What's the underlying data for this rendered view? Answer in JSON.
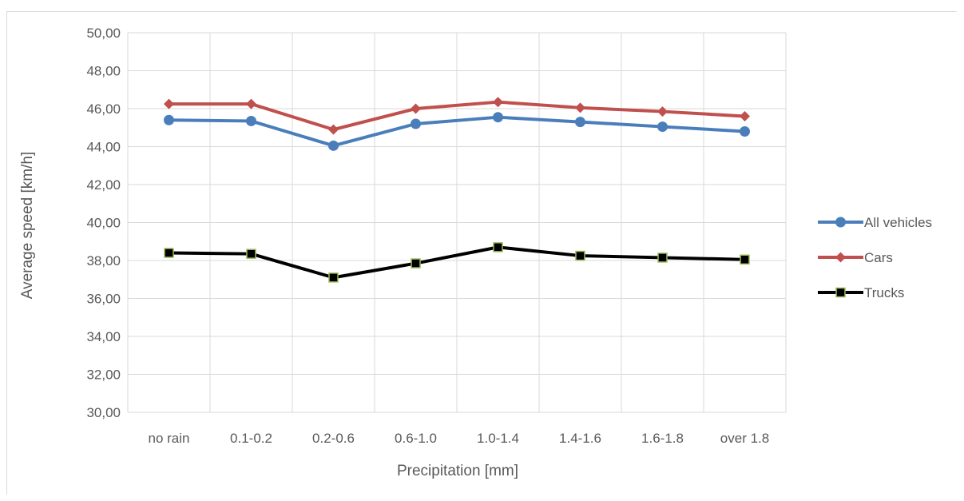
{
  "chart_data": {
    "type": "line",
    "title": "",
    "xlabel": "Precipitation [mm]",
    "ylabel": "Average speed [km/h]",
    "categories": [
      "no rain",
      "0.1-0.2",
      "0.2-0.6",
      "0.6-1.0",
      "1.0-1.4",
      "1.4-1.6",
      "1.6-1.8",
      "over 1.8"
    ],
    "ylim": [
      30,
      50
    ],
    "ytick_step": 2,
    "ytick_labels": [
      "30,00",
      "32,00",
      "34,00",
      "36,00",
      "38,00",
      "40,00",
      "42,00",
      "44,00",
      "46,00",
      "48,00",
      "50,00"
    ],
    "grid": true,
    "legend_position": "right",
    "series": [
      {
        "name": "All vehicles",
        "color": "#4a7ebb",
        "marker": "circle",
        "values": [
          45.4,
          45.35,
          44.05,
          45.2,
          45.55,
          45.3,
          45.05,
          44.8
        ]
      },
      {
        "name": "Cars",
        "color": "#c0504d",
        "marker": "diamond",
        "values": [
          46.25,
          46.25,
          44.9,
          46.0,
          46.35,
          46.05,
          45.85,
          45.6
        ]
      },
      {
        "name": "Trucks",
        "color": "#000000",
        "marker": "square",
        "marker_edge": "#9bbb59",
        "values": [
          38.4,
          38.35,
          37.1,
          37.85,
          38.7,
          38.25,
          38.15,
          38.05
        ]
      }
    ]
  }
}
